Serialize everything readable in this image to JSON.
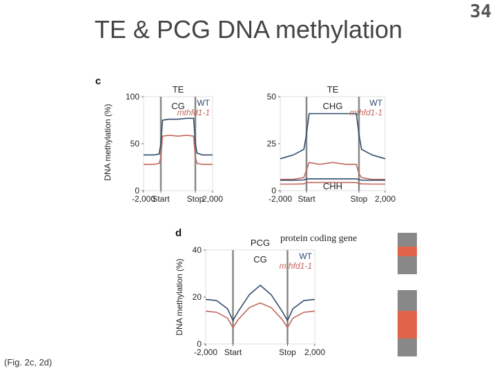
{
  "slide": {
    "title": "TE & PCG DNA methylation",
    "page_number": "34",
    "caption": "(Fig. 2c, 2d)",
    "annotation": "protein coding gene"
  },
  "colors": {
    "wt": "#2e4a6b",
    "mutant": "#c0675a",
    "boundary": "#888888",
    "block_gray": "#888888",
    "block_orange": "#e0644a"
  },
  "chart_data": [
    {
      "panel": "c",
      "type": "line",
      "title": "TE",
      "context": "CG",
      "ylabel": "DNA methylation (%)",
      "ylim": [
        0,
        100
      ],
      "yticks": [
        0,
        50,
        100
      ],
      "x_ticks": [
        "-2,000",
        "Start",
        "Stop",
        "2,000"
      ],
      "legend": [
        "WT",
        "mthfd1-1"
      ],
      "x": [
        0,
        0.6,
        0.9,
        1,
        1.1,
        1.5,
        2,
        2.5,
        2.9,
        3,
        3.1,
        3.4,
        4
      ],
      "series": [
        {
          "name": "WT",
          "values": [
            38,
            38,
            39,
            50,
            75,
            76,
            76,
            77,
            77,
            50,
            40,
            38,
            38
          ]
        },
        {
          "name": "mthfd1-1",
          "values": [
            28,
            28,
            29,
            35,
            58,
            59,
            58,
            59,
            58,
            35,
            29,
            28,
            28
          ]
        }
      ]
    },
    {
      "panel": "c",
      "type": "line",
      "title": "TE",
      "context": "CHG",
      "context2": "CHH",
      "ylim": [
        0,
        50
      ],
      "yticks": [
        0,
        25,
        50
      ],
      "x_ticks": [
        "-2,000",
        "Start",
        "Stop",
        "2,000"
      ],
      "legend": [
        "WT",
        "mthfd1-1"
      ],
      "x": [
        0,
        0.5,
        0.9,
        1,
        1.1,
        1.5,
        2,
        2.5,
        2.9,
        3,
        3.1,
        3.5,
        4
      ],
      "series": [
        {
          "name": "WT",
          "values": [
            17,
            19,
            22,
            30,
            41,
            41,
            41,
            41,
            41,
            30,
            22,
            19,
            17
          ]
        },
        {
          "name": "mthfd1-1",
          "values": [
            6,
            6,
            7,
            11,
            15,
            14,
            15,
            14,
            14,
            9,
            7,
            6,
            6
          ]
        },
        {
          "name": "WT CHH",
          "values": [
            5.5,
            5.5,
            5.7,
            6.2,
            6.3,
            6.3,
            6.3,
            6.3,
            6.3,
            5.9,
            5.6,
            5.5,
            5.5
          ]
        },
        {
          "name": "mthfd1-1 CHH",
          "values": [
            3.5,
            3.5,
            3.6,
            4.2,
            4.3,
            4.3,
            4.3,
            4.3,
            4.3,
            3.8,
            3.6,
            3.5,
            3.5
          ]
        }
      ]
    },
    {
      "panel": "d",
      "type": "line",
      "title": "PCG",
      "context": "CG",
      "ylabel": "DNA methylation (%)",
      "ylim": [
        0,
        40
      ],
      "yticks": [
        0,
        20,
        40
      ],
      "x_ticks": [
        "-2,000",
        "Start",
        "Stop",
        "2,000"
      ],
      "legend": [
        "WT",
        "mthfd1-1"
      ],
      "x": [
        0,
        0.4,
        0.8,
        1,
        1.2,
        1.6,
        2,
        2.4,
        2.8,
        3,
        3.2,
        3.6,
        4
      ],
      "series": [
        {
          "name": "WT",
          "values": [
            19,
            18.5,
            15,
            10,
            14,
            21,
            25,
            21,
            14,
            10,
            15,
            18.5,
            19
          ]
        },
        {
          "name": "mthfd1-1",
          "values": [
            14,
            13.5,
            11,
            7,
            10.5,
            15.5,
            17.5,
            15.5,
            10.5,
            7,
            11,
            13.5,
            14
          ]
        }
      ]
    }
  ]
}
